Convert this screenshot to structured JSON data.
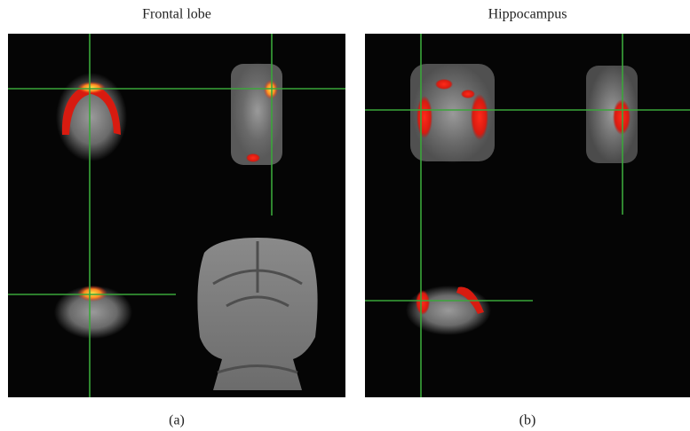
{
  "panels": [
    {
      "title": "Frontal lobe",
      "label": "(a)"
    },
    {
      "title": "Hippocampus",
      "label": "(b)"
    }
  ]
}
